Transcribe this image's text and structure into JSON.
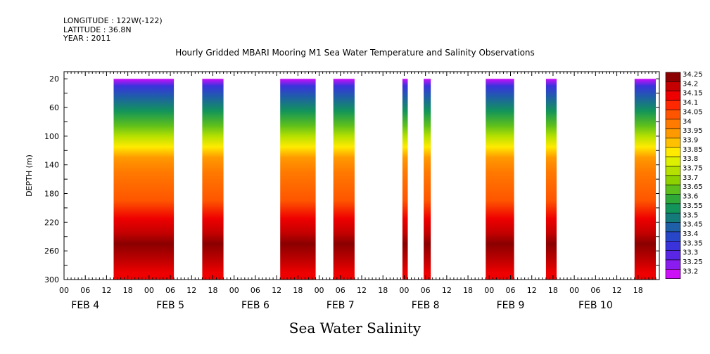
{
  "header": {
    "meta_lines": [
      "LONGITUDE : 122W(-122)",
      "LATITUDE : 36.8N",
      "YEAR : 2011"
    ],
    "title": "Hourly Gridded MBARI Mooring M1 Sea Water Temperature and Salinity Observations"
  },
  "footer": {
    "subtitle": "Sea Water Salinity"
  },
  "chart_data": {
    "type": "heatmap",
    "variable": "Sea Water Salinity",
    "ylabel": "DEPTH (m)",
    "y_reversed": true,
    "ylim": [
      10,
      300
    ],
    "y_ticks": [
      20,
      60,
      100,
      140,
      180,
      220,
      260,
      300
    ],
    "x_unit": "hours from FEB 4 00:00 (2011)",
    "xlim": [
      0,
      168
    ],
    "x_hour_ticks": [
      "00",
      "06",
      "12",
      "18",
      "00",
      "06",
      "12",
      "18",
      "00",
      "06",
      "12",
      "18",
      "00",
      "06",
      "12",
      "18",
      "00",
      "06",
      "12",
      "18",
      "00",
      "06",
      "12",
      "18",
      "00",
      "06",
      "12",
      "18"
    ],
    "x_day_labels": [
      {
        "label": "FEB  4",
        "hour": 6
      },
      {
        "label": "FEB  5",
        "hour": 30
      },
      {
        "label": "FEB  6",
        "hour": 54
      },
      {
        "label": "FEB  7",
        "hour": 78
      },
      {
        "label": "FEB  8",
        "hour": 102
      },
      {
        "label": "FEB  9",
        "hour": 126
      },
      {
        "label": "FEB 10",
        "hour": 150
      }
    ],
    "data_depth_range": [
      20,
      300
    ],
    "data_segments_hours": [
      [
        14,
        31
      ],
      [
        39,
        45
      ],
      [
        61,
        71
      ],
      [
        76,
        82
      ],
      [
        95.5,
        97
      ],
      [
        101.5,
        103.5
      ],
      [
        119,
        127
      ],
      [
        136,
        139
      ],
      [
        161,
        167
      ]
    ],
    "depth_profile": [
      {
        "depth": 20,
        "value": 33.2
      },
      {
        "depth": 30,
        "value": 33.35
      },
      {
        "depth": 45,
        "value": 33.45
      },
      {
        "depth": 65,
        "value": 33.55
      },
      {
        "depth": 85,
        "value": 33.65
      },
      {
        "depth": 100,
        "value": 33.75
      },
      {
        "depth": 115,
        "value": 33.85
      },
      {
        "depth": 130,
        "value": 33.95
      },
      {
        "depth": 150,
        "value": 34.0
      },
      {
        "depth": 190,
        "value": 34.05
      },
      {
        "depth": 215,
        "value": 34.15
      },
      {
        "depth": 235,
        "value": 34.2
      },
      {
        "depth": 250,
        "value": 34.25
      },
      {
        "depth": 275,
        "value": 34.2
      },
      {
        "depth": 290,
        "value": 34.15
      },
      {
        "depth": 300,
        "value": 34.15
      }
    ],
    "colorbar": {
      "levels": [
        34.25,
        34.2,
        34.15,
        34.1,
        34.05,
        34,
        33.95,
        33.9,
        33.85,
        33.8,
        33.75,
        33.7,
        33.65,
        33.6,
        33.55,
        33.5,
        33.45,
        33.4,
        33.35,
        33.3,
        33.25,
        33.2
      ],
      "colors": [
        "#8b0000",
        "#c40000",
        "#ee0000",
        "#ff2800",
        "#ff5500",
        "#ff7a00",
        "#ff9900",
        "#ffc000",
        "#ffea00",
        "#ddf000",
        "#b5e000",
        "#8ed100",
        "#5cbf1c",
        "#2fa83a",
        "#13945a",
        "#147a7a",
        "#1e5fa8",
        "#2846c8",
        "#3a33dc",
        "#5a26e6",
        "#8a1cf0",
        "#cc10f8"
      ]
    }
  }
}
